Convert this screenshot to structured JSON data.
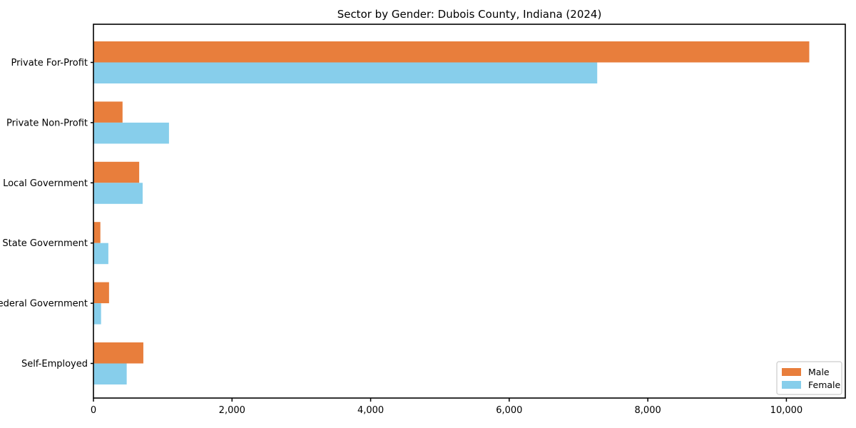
{
  "chart_data": {
    "type": "bar",
    "orientation": "horizontal",
    "title": "Sector by Gender: Dubois County, Indiana (2024)",
    "categories": [
      "Private For-Profit",
      "Private Non-Profit",
      "Local Government",
      "State Government",
      "Federal Government",
      "Self-Employed"
    ],
    "series": [
      {
        "name": "Male",
        "color": "#e87e3c",
        "values": [
          10330,
          420,
          660,
          100,
          225,
          720
        ]
      },
      {
        "name": "Female",
        "color": "#87ceeb",
        "values": [
          7270,
          1090,
          710,
          215,
          110,
          480
        ]
      }
    ],
    "xlabel": "",
    "ylabel": "",
    "xlim": [
      0,
      10850
    ],
    "xticks": [
      0,
      2000,
      4000,
      6000,
      8000,
      10000
    ],
    "xtick_labels": [
      "0",
      "2,000",
      "4,000",
      "6,000",
      "8,000",
      "10,000"
    ],
    "grid": false,
    "legend": {
      "position": "lower right",
      "entries": [
        {
          "label": "Male",
          "color": "#e87e3c"
        },
        {
          "label": "Female",
          "color": "#87ceeb"
        }
      ]
    }
  },
  "colors": {
    "background": "#ffffff",
    "spine": "#000000",
    "tick_text": "#000000",
    "legend_border": "#cccccc",
    "legend_background": "#ffffff"
  }
}
